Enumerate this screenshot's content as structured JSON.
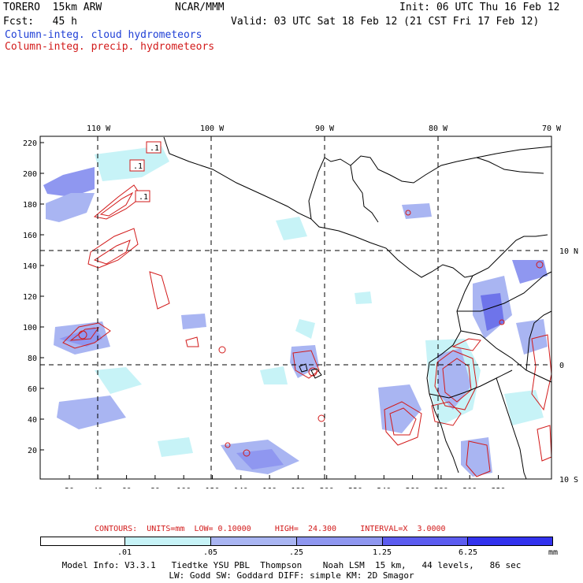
{
  "header": {
    "model": "TORERO  15km ARW",
    "center": "NCAR/MMM",
    "init": "Init: 06 UTC Thu 16 Feb 12",
    "fcst": "Fcst:   45 h",
    "valid": "Valid: 03 UTC Sat 18 Feb 12 (21 CST Fri 17 Feb 12)",
    "legend_cloud": "Column-integ. cloud hydrometeors",
    "legend_precip": "Column-integ. precip. hydrometeors"
  },
  "map": {
    "lon_labels": [
      "110 W",
      "100 W",
      "90 W",
      "80 W",
      "70 W"
    ],
    "lat_labels": [
      "10 N",
      "0",
      "10 S"
    ],
    "y_ticks": [
      "220",
      "200",
      "180",
      "160",
      "140",
      "120",
      "100",
      "80",
      "60",
      "40",
      "20"
    ],
    "x_ticks": [
      "20",
      "40",
      "60",
      "80",
      "100",
      "120",
      "140",
      "160",
      "180",
      "200",
      "220",
      "240",
      "260",
      "280",
      "300",
      "320"
    ],
    "contour_labels": [
      ".1",
      ".1",
      ".1"
    ],
    "colors": {
      "coast": "#000000",
      "cloud_light": "#c7f3f7",
      "cloud_mid": "#a9b5f2",
      "cloud_dark": "#6e74ea",
      "precip": "#d21a1a"
    }
  },
  "contour_info": {
    "prefix": "CONTOURS:",
    "units": "UNITS=mm",
    "low": "LOW= 0.10000",
    "high": "HIGH=  24.300",
    "interval": "INTERVAL=X  3.0000"
  },
  "colorbar": {
    "labels": [
      ".01",
      ".05",
      ".25",
      "1.25",
      "6.25"
    ],
    "unit": "mm",
    "colors": [
      "#ffffff",
      "#c7f3f7",
      "#a9b5f2",
      "#8f97f0",
      "#5c5cf0",
      "#3232ee",
      "#1111e8"
    ]
  },
  "footer": {
    "line1": "Model Info: V3.3.1   Tiedtke YSU PBL  Thompson    Noah LSM  15 km,   44 levels,   86 sec",
    "line2": "LW: Godd SW: Goddard DIFF: simple KM: 2D Smagor"
  }
}
